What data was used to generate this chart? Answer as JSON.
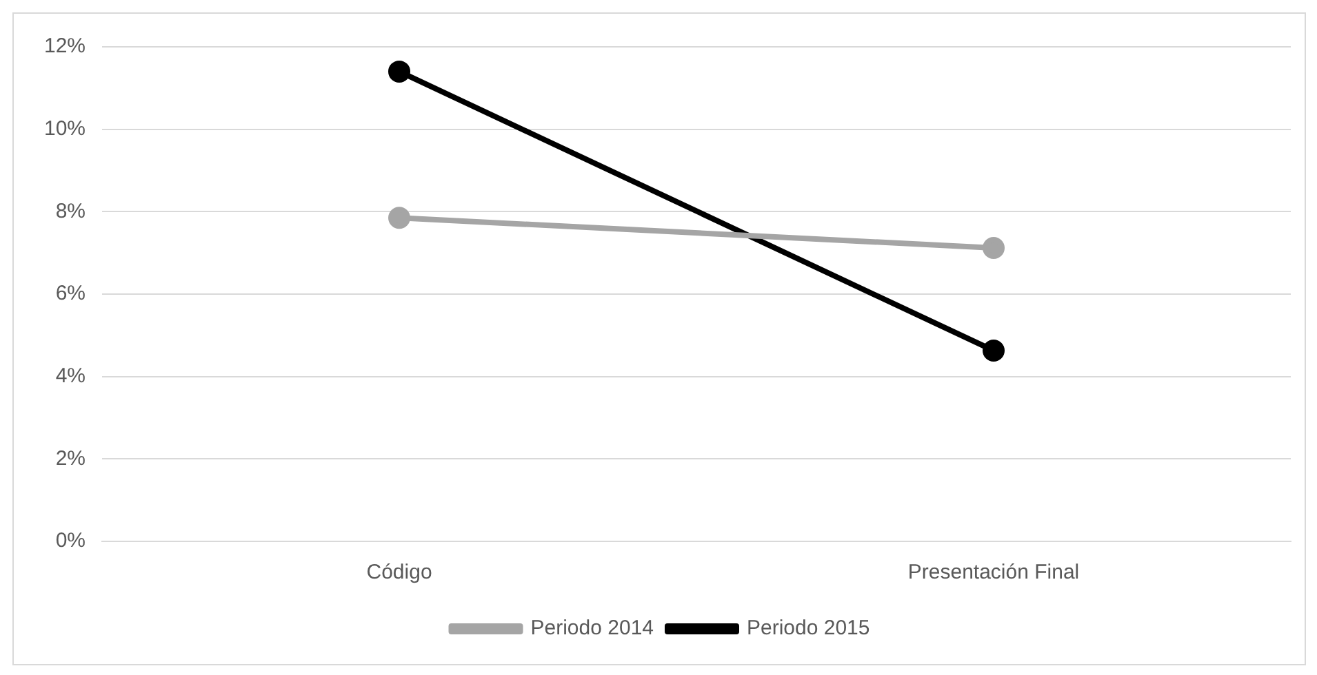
{
  "chart_data": {
    "type": "line",
    "categories": [
      "Código",
      "Presentación Final"
    ],
    "series": [
      {
        "name": "Periodo 2014",
        "color": "#a5a5a5",
        "values": [
          7.85,
          7.12
        ]
      },
      {
        "name": "Periodo 2015",
        "color": "#000000",
        "values": [
          11.4,
          4.63
        ]
      }
    ],
    "ylim": [
      0,
      12
    ],
    "yticks": [
      {
        "value": 0,
        "label": "0%"
      },
      {
        "value": 2,
        "label": "2%"
      },
      {
        "value": 4,
        "label": "4%"
      },
      {
        "value": 6,
        "label": "6%"
      },
      {
        "value": 8,
        "label": "8%"
      },
      {
        "value": 10,
        "label": "10%"
      },
      {
        "value": 12,
        "label": "12%"
      }
    ],
    "grid": "y",
    "legend": "bottom",
    "marker": "circle",
    "line_style": "solid"
  }
}
